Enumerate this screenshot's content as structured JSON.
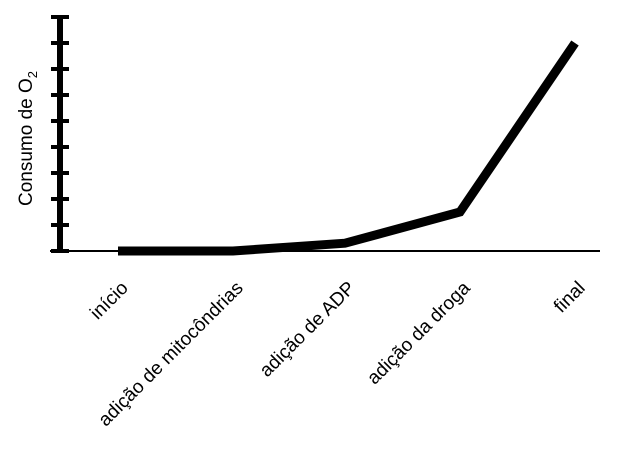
{
  "chart_data": {
    "type": "line",
    "title": "",
    "xlabel": "",
    "ylabel": "Consumo de O",
    "ylabel_subscript": "2",
    "categories": [
      "início",
      "adição de mitocôndrias",
      "adição de ADP",
      "adição da droga",
      "final"
    ],
    "series": [
      {
        "values": [
          0,
          0,
          0.3,
          1.5,
          8.0
        ]
      }
    ],
    "ylim": [
      0,
      9
    ],
    "y_ticks": 9,
    "y_tick_labels_shown": false,
    "grid": false,
    "legend": "none",
    "line_color": "#000000"
  }
}
